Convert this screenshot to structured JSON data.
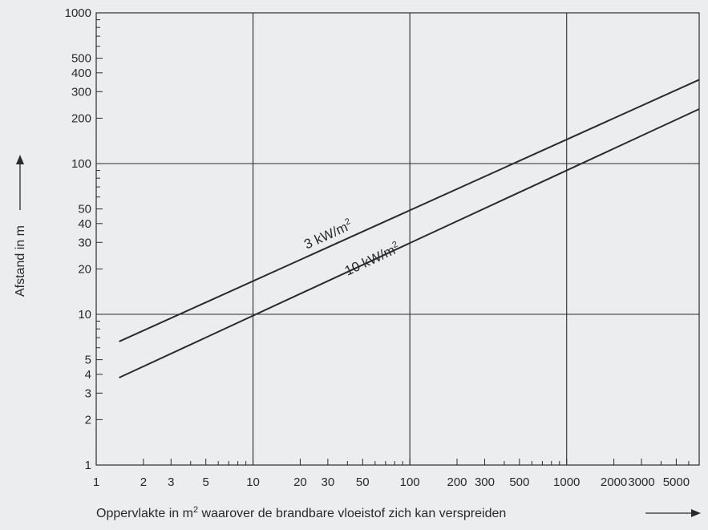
{
  "chart_data": {
    "type": "line",
    "xscale": "log",
    "yscale": "log",
    "xlim": [
      1,
      7000
    ],
    "ylim": [
      1,
      1000
    ],
    "grid": true,
    "xlabel": "Oppervlakte in m",
    "xlabel_sup": "2",
    "xlabel_rest": " waarover de brandbare vloeistof zich kan verspreiden",
    "ylabel": "Afstand in m",
    "x_ticks": [
      {
        "v": 1,
        "t": "1"
      },
      {
        "v": 2,
        "t": "2"
      },
      {
        "v": 3,
        "t": "3"
      },
      {
        "v": 5,
        "t": "5"
      },
      {
        "v": 10,
        "t": "10"
      },
      {
        "v": 20,
        "t": "20"
      },
      {
        "v": 30,
        "t": "30"
      },
      {
        "v": 50,
        "t": "50"
      },
      {
        "v": 100,
        "t": "100"
      },
      {
        "v": 200,
        "t": "200"
      },
      {
        "v": 300,
        "t": "300"
      },
      {
        "v": 500,
        "t": "500"
      },
      {
        "v": 1000,
        "t": "1000"
      },
      {
        "v": 2000,
        "t": "2000"
      },
      {
        "v": 3000,
        "t": "3000"
      },
      {
        "v": 5000,
        "t": "5000"
      }
    ],
    "y_ticks": [
      {
        "v": 1,
        "t": "1"
      },
      {
        "v": 2,
        "t": "2"
      },
      {
        "v": 3,
        "t": "3"
      },
      {
        "v": 4,
        "t": "4"
      },
      {
        "v": 5,
        "t": "5"
      },
      {
        "v": 10,
        "t": "10"
      },
      {
        "v": 20,
        "t": "20"
      },
      {
        "v": 30,
        "t": "30"
      },
      {
        "v": 40,
        "t": "40"
      },
      {
        "v": 50,
        "t": "50"
      },
      {
        "v": 100,
        "t": "100"
      },
      {
        "v": 200,
        "t": "200"
      },
      {
        "v": 300,
        "t": "300"
      },
      {
        "v": 400,
        "t": "400"
      },
      {
        "v": 500,
        "t": "500"
      },
      {
        "v": 1000,
        "t": "1000"
      }
    ],
    "major_grid_x": [
      10,
      100,
      1000
    ],
    "major_grid_y": [
      10,
      100
    ],
    "series": [
      {
        "name": "3 kW/m",
        "name_sup": "2",
        "x": [
          1.4,
          7000
        ],
        "y": [
          6.6,
          360
        ],
        "label_at": [
          22,
          27
        ]
      },
      {
        "name": "10 kW/m",
        "name_sup": "2",
        "x": [
          1.4,
          7000
        ],
        "y": [
          3.8,
          230
        ],
        "label_at": [
          40,
          18
        ]
      }
    ]
  }
}
